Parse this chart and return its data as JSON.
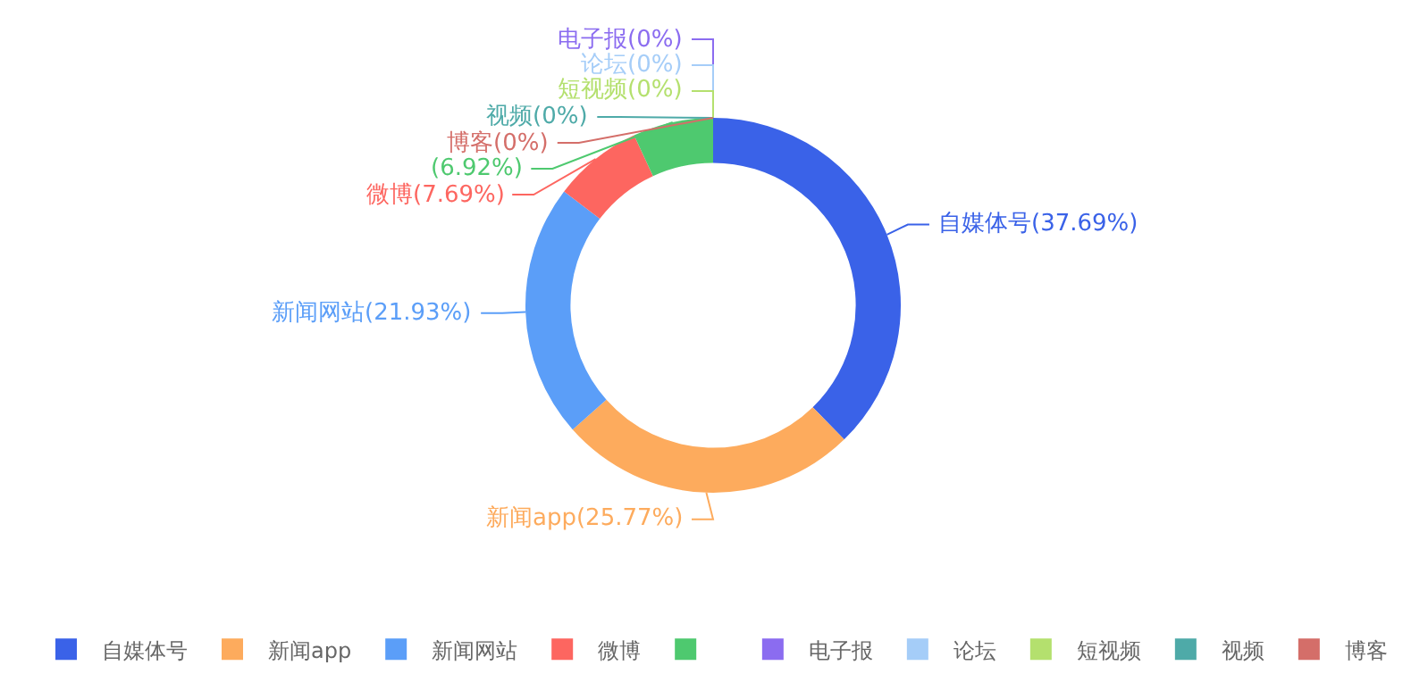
{
  "chart_data": {
    "type": "donut",
    "categories": [
      "自媒体号",
      "新闻app",
      "新闻网站",
      "微博",
      null,
      "电子报",
      "论坛",
      "短视频",
      "视频",
      "博客"
    ],
    "values": [
      37.69,
      25.77,
      21.93,
      7.69,
      6.92,
      0,
      0,
      0,
      0,
      0
    ],
    "colors": [
      "#3a62e8",
      "#fdab5d",
      "#5b9ef8",
      "#fd6660",
      "#4ec96f",
      "#8b6cf0",
      "#a5cdf8",
      "#b4e06e",
      "#4eaaa8",
      "#d46e69"
    ],
    "value_labels": [
      "自媒体号(37.69%)",
      "新闻app(25.77%)",
      "新闻网站(21.93%)",
      "微博(7.69%)",
      "(6.92%)",
      "电子报(0%)",
      "论坛(0%)",
      "短视频(0%)",
      "视频(0%)",
      "博客(0%)"
    ],
    "legend": "bottom"
  }
}
